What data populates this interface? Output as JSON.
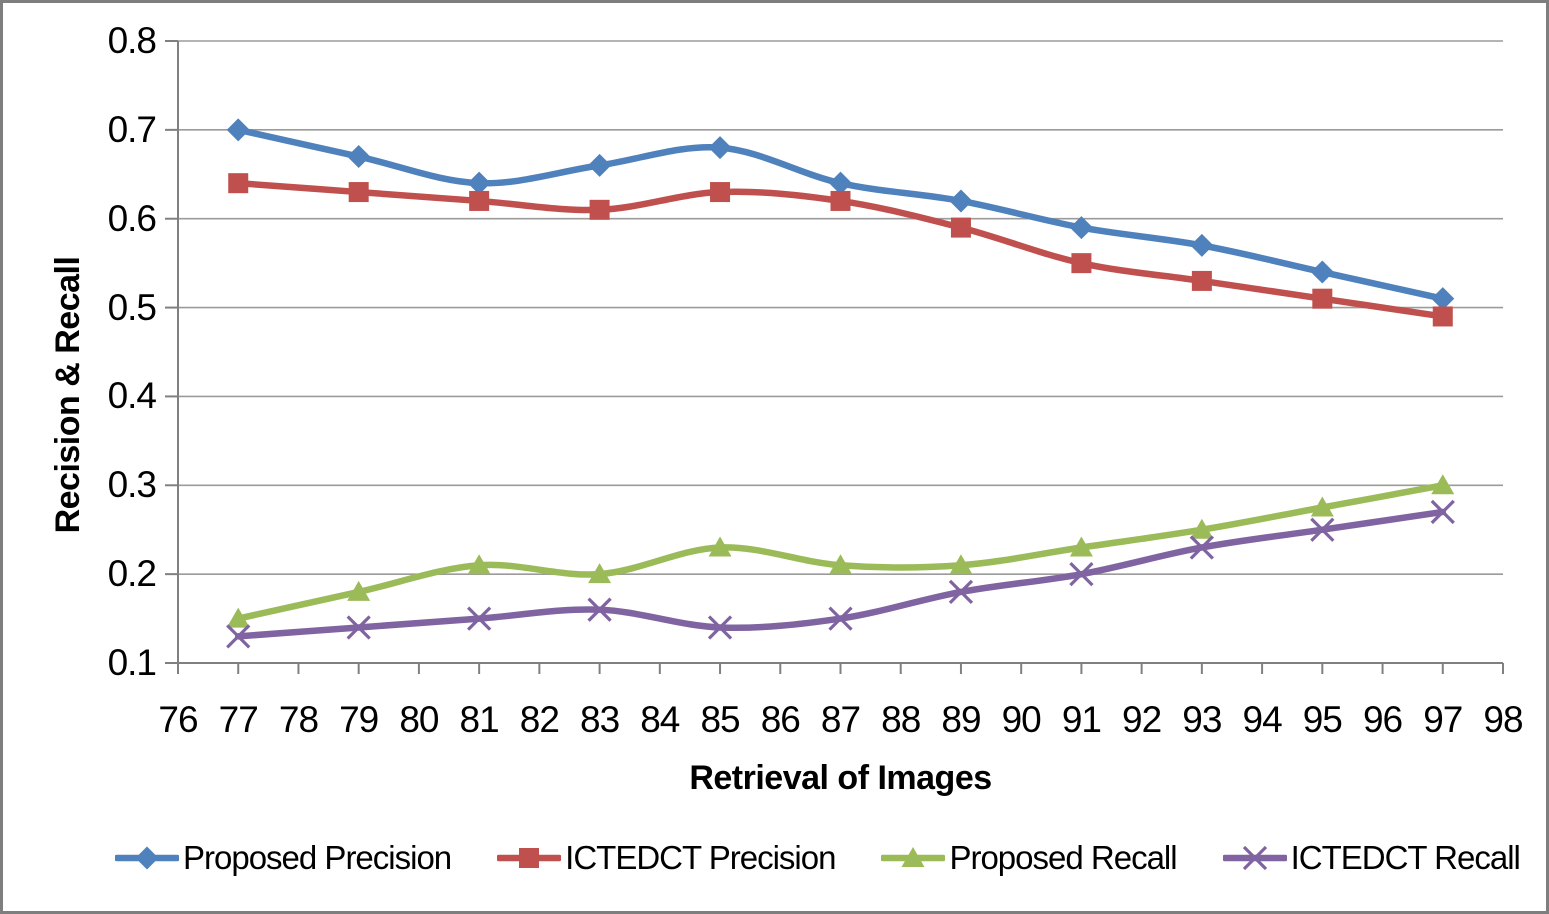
{
  "chart_data": {
    "type": "line",
    "title": "",
    "xlabel": "Retrieval of Images",
    "ylabel": "Recision & Recall",
    "xlim": [
      76,
      98
    ],
    "ylim": [
      0.1,
      0.8
    ],
    "grid": "horizontal",
    "legend_position": "bottom",
    "line_style": "smooth",
    "x_ticks": [
      76,
      77,
      78,
      79,
      80,
      81,
      82,
      83,
      84,
      85,
      86,
      87,
      88,
      89,
      90,
      91,
      92,
      93,
      94,
      95,
      96,
      97,
      98
    ],
    "y_ticks": [
      0.1,
      0.2,
      0.3,
      0.4,
      0.5,
      0.6,
      0.7,
      0.8
    ],
    "x": [
      77,
      79,
      81,
      83,
      85,
      87,
      89,
      91,
      93,
      95,
      97
    ],
    "series": [
      {
        "name": "Proposed Precision",
        "marker": "diamond",
        "color": "#4F81BD",
        "values": [
          0.7,
          0.67,
          0.64,
          0.66,
          0.68,
          0.64,
          0.62,
          0.59,
          0.57,
          0.54,
          0.51
        ]
      },
      {
        "name": "ICTEDCT Precision",
        "marker": "square",
        "color": "#C0504D",
        "values": [
          0.64,
          0.63,
          0.62,
          0.61,
          0.63,
          0.62,
          0.59,
          0.55,
          0.53,
          0.51,
          0.49
        ]
      },
      {
        "name": "Proposed Recall",
        "marker": "triangle",
        "color": "#9BBB59",
        "values": [
          0.15,
          0.18,
          0.21,
          0.2,
          0.23,
          0.21,
          0.21,
          0.23,
          0.25,
          0.275,
          0.3
        ]
      },
      {
        "name": "ICTEDCT Recall",
        "marker": "x",
        "color": "#8064A2",
        "values": [
          0.13,
          0.14,
          0.15,
          0.16,
          0.14,
          0.15,
          0.18,
          0.2,
          0.23,
          0.25,
          0.27
        ]
      }
    ],
    "style_colors": {
      "gridline": "#9b9b9b",
      "axis": "#808080",
      "frame_border": "#7e7e7e",
      "text": "#000000"
    }
  }
}
